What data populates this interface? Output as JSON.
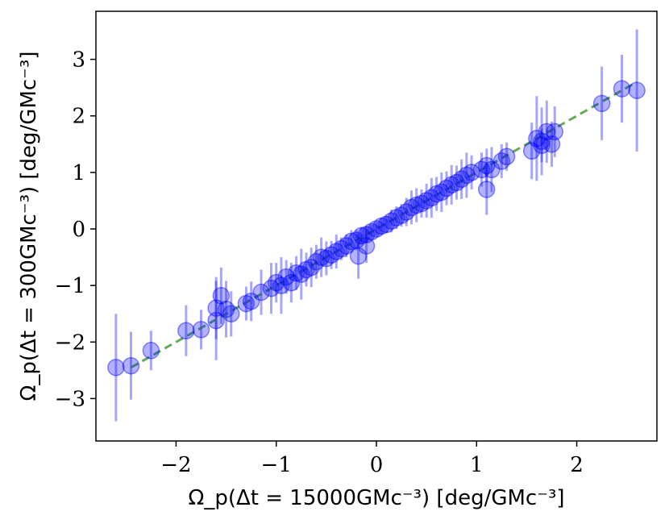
{
  "chart_data": {
    "type": "scatter",
    "title": "",
    "xlabel": "Ω_p(Δt = 15000GMc⁻³) [deg/GMc⁻³]",
    "ylabel": "Ω_p(Δt = 300GMc⁻³) [deg/GMc⁻³]",
    "xlim": [
      -2.8,
      2.8
    ],
    "ylim": [
      -3.75,
      3.85
    ],
    "xticks": [
      -2,
      -1,
      0,
      1,
      2
    ],
    "xtick_labels": [
      "−2",
      "−1",
      "0",
      "1",
      "2"
    ],
    "yticks": [
      -3,
      -2,
      -1,
      0,
      1,
      2,
      3
    ],
    "ytick_labels": [
      "−3",
      "−2",
      "−1",
      "0",
      "1",
      "2",
      "3"
    ],
    "grid": false,
    "legend": "none",
    "reference_line": {
      "x": [
        -2.45,
        2.6
      ],
      "y": [
        -2.45,
        2.6
      ],
      "style": "dashed"
    },
    "colors": {
      "points": "#0000ff",
      "error_bars": "#0000ff",
      "reference_line": "#4a9a3c"
    },
    "points": [
      {
        "x": -2.6,
        "y": -2.45,
        "err": 0.95
      },
      {
        "x": -2.45,
        "y": -2.42,
        "err": 0.6
      },
      {
        "x": -2.25,
        "y": -2.15,
        "err": 0.35
      },
      {
        "x": -1.9,
        "y": -1.8,
        "err": 0.45
      },
      {
        "x": -1.75,
        "y": -1.78,
        "err": 0.35
      },
      {
        "x": -1.6,
        "y": -1.4,
        "err": 0.55
      },
      {
        "x": -1.6,
        "y": -1.62,
        "err": 0.7
      },
      {
        "x": -1.55,
        "y": -1.18,
        "err": 0.5
      },
      {
        "x": -1.5,
        "y": -1.42,
        "err": 0.5
      },
      {
        "x": -1.45,
        "y": -1.5,
        "err": 0.4
      },
      {
        "x": -1.3,
        "y": -1.32,
        "err": 0.3
      },
      {
        "x": -1.25,
        "y": -1.28,
        "err": 0.35
      },
      {
        "x": -1.15,
        "y": -1.12,
        "err": 0.4
      },
      {
        "x": -1.05,
        "y": -1.05,
        "err": 0.45
      },
      {
        "x": -1.0,
        "y": -0.95,
        "err": 0.35
      },
      {
        "x": -0.95,
        "y": -1.0,
        "err": 0.5
      },
      {
        "x": -0.9,
        "y": -0.85,
        "err": 0.3
      },
      {
        "x": -0.85,
        "y": -0.95,
        "err": 0.35
      },
      {
        "x": -0.8,
        "y": -0.78,
        "err": 0.3
      },
      {
        "x": -0.75,
        "y": -0.8,
        "err": 0.45
      },
      {
        "x": -0.7,
        "y": -0.72,
        "err": 0.3
      },
      {
        "x": -0.65,
        "y": -0.68,
        "err": 0.35
      },
      {
        "x": -0.6,
        "y": -0.58,
        "err": 0.3
      },
      {
        "x": -0.55,
        "y": -0.5,
        "err": 0.35
      },
      {
        "x": -0.5,
        "y": -0.52,
        "err": 0.3
      },
      {
        "x": -0.45,
        "y": -0.46,
        "err": 0.25
      },
      {
        "x": -0.4,
        "y": -0.4,
        "err": 0.3
      },
      {
        "x": -0.35,
        "y": -0.35,
        "err": 0.2
      },
      {
        "x": -0.3,
        "y": -0.3,
        "err": 0.2
      },
      {
        "x": -0.25,
        "y": -0.22,
        "err": 0.2
      },
      {
        "x": -0.2,
        "y": -0.2,
        "err": 0.18
      },
      {
        "x": -0.18,
        "y": -0.48,
        "err": 0.4
      },
      {
        "x": -0.1,
        "y": -0.3,
        "err": 0.3
      },
      {
        "x": -0.15,
        "y": -0.12,
        "err": 0.15
      },
      {
        "x": -0.1,
        "y": -0.1,
        "err": 0.15
      },
      {
        "x": -0.05,
        "y": -0.05,
        "err": 0.12
      },
      {
        "x": 0.0,
        "y": 0.0,
        "err": 0.12
      },
      {
        "x": 0.05,
        "y": 0.05,
        "err": 0.15
      },
      {
        "x": 0.1,
        "y": 0.08,
        "err": 0.15
      },
      {
        "x": 0.15,
        "y": 0.14,
        "err": 0.2
      },
      {
        "x": 0.2,
        "y": 0.2,
        "err": 0.2
      },
      {
        "x": 0.25,
        "y": 0.24,
        "err": 0.2
      },
      {
        "x": 0.3,
        "y": 0.3,
        "err": 0.25
      },
      {
        "x": 0.35,
        "y": 0.38,
        "err": 0.3
      },
      {
        "x": 0.4,
        "y": 0.42,
        "err": 0.3
      },
      {
        "x": 0.45,
        "y": 0.45,
        "err": 0.25
      },
      {
        "x": 0.5,
        "y": 0.5,
        "err": 0.3
      },
      {
        "x": 0.55,
        "y": 0.55,
        "err": 0.35
      },
      {
        "x": 0.6,
        "y": 0.62,
        "err": 0.3
      },
      {
        "x": 0.65,
        "y": 0.65,
        "err": 0.35
      },
      {
        "x": 0.7,
        "y": 0.72,
        "err": 0.3
      },
      {
        "x": 0.75,
        "y": 0.78,
        "err": 0.35
      },
      {
        "x": 0.8,
        "y": 0.82,
        "err": 0.3
      },
      {
        "x": 0.85,
        "y": 0.88,
        "err": 0.35
      },
      {
        "x": 0.9,
        "y": 0.95,
        "err": 0.4
      },
      {
        "x": 0.95,
        "y": 1.0,
        "err": 0.3
      },
      {
        "x": 1.05,
        "y": 1.05,
        "err": 0.3
      },
      {
        "x": 1.1,
        "y": 1.12,
        "err": 0.3
      },
      {
        "x": 1.1,
        "y": 0.7,
        "err": 0.45
      },
      {
        "x": 1.15,
        "y": 1.05,
        "err": 0.4
      },
      {
        "x": 1.25,
        "y": 1.2,
        "err": 0.3
      },
      {
        "x": 1.3,
        "y": 1.28,
        "err": 0.25
      },
      {
        "x": 1.55,
        "y": 1.38,
        "err": 0.5
      },
      {
        "x": 1.6,
        "y": 1.6,
        "err": 0.75
      },
      {
        "x": 1.65,
        "y": 1.55,
        "err": 0.6
      },
      {
        "x": 1.65,
        "y": 1.48,
        "err": 0.3
      },
      {
        "x": 1.7,
        "y": 1.72,
        "err": 0.55
      },
      {
        "x": 1.75,
        "y": 1.5,
        "err": 0.4
      },
      {
        "x": 1.78,
        "y": 1.72,
        "err": 0.45
      },
      {
        "x": 2.25,
        "y": 2.22,
        "err": 0.65
      },
      {
        "x": 2.45,
        "y": 2.48,
        "err": 0.6
      },
      {
        "x": 2.6,
        "y": 2.45,
        "err": 1.08
      }
    ]
  }
}
